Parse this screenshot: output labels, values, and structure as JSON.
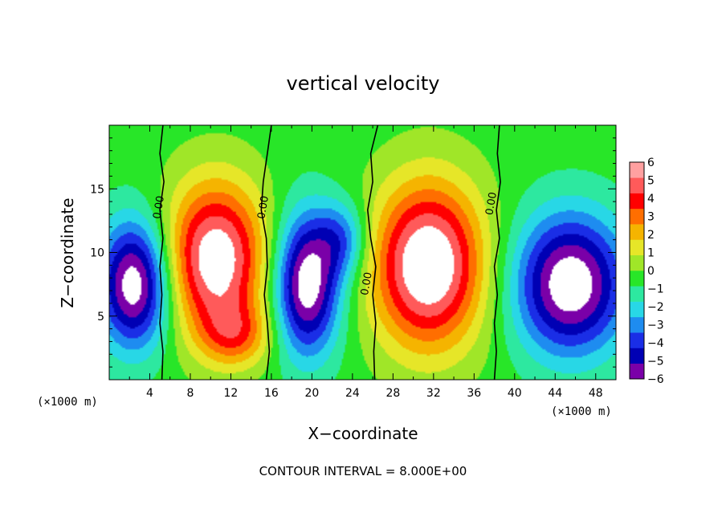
{
  "chart_data": {
    "type": "heatmap",
    "title": "vertical velocity",
    "xlabel": "X−coordinate",
    "ylabel": "Z−coordinate",
    "x_unit_label": "(×1000 m)",
    "y_unit_label": "(×1000 m)",
    "footer": "CONTOUR INTERVAL = 8.000E+00",
    "xlim": [
      0,
      50
    ],
    "ylim": [
      0,
      20
    ],
    "x_ticks": [
      "4",
      "8",
      "12",
      "16",
      "20",
      "24",
      "28",
      "32",
      "36",
      "40",
      "44",
      "48"
    ],
    "y_ticks": [
      "5",
      "10",
      "15"
    ],
    "colorbar": {
      "levels": [
        "6",
        "5",
        "4",
        "3",
        "2",
        "1",
        "0",
        "−1",
        "−2",
        "−3",
        "−4",
        "−5",
        "−6"
      ],
      "range": [
        -6,
        6
      ],
      "colors": [
        "#7a00a8",
        "#0000b4",
        "#1a2ee6",
        "#1e8cf0",
        "#28d7e6",
        "#2de8a0",
        "#28e628",
        "#a0e628",
        "#e6e628",
        "#f5b400",
        "#ff6e00",
        "#ff0000",
        "#ff5a5a",
        "#ffa0a0"
      ]
    },
    "contour_labels": [
      {
        "text": "0.00",
        "x": 5.2,
        "z": 13.5
      },
      {
        "text": "0.00",
        "x": 15.5,
        "z": 13.5
      },
      {
        "text": "0.00",
        "x": 25.7,
        "z": 7.5
      },
      {
        "text": "0.00",
        "x": 38.0,
        "z": 13.8
      }
    ],
    "zero_contours_x": [
      [
        5.3,
        5.0,
        5.4,
        5.0,
        5.3,
        5.0,
        5.2,
        5.0,
        5.3,
        5.2
      ],
      [
        16.0,
        15.6,
        15.2,
        15.0,
        15.5,
        15.6,
        15.3,
        15.6,
        15.8,
        15.5
      ],
      [
        26.5,
        25.8,
        26.0,
        25.5,
        25.8,
        26.3,
        26.0,
        26.3,
        26.1,
        26.2
      ],
      [
        38.5,
        38.3,
        38.6,
        38.2,
        38.5,
        38.0,
        38.3,
        38.0,
        38.2,
        38.0
      ]
    ],
    "cells": [
      {
        "x": 10.5,
        "z": 9.5,
        "rx": 5.0,
        "rz": 6.0,
        "a": 7.0
      },
      {
        "x": 31.5,
        "z": 9.0,
        "rx": 5.5,
        "rz": 6.5,
        "a": 7.5
      },
      {
        "x": 2.5,
        "z": 7.5,
        "rx": 3.5,
        "rz": 5.0,
        "a": -7.0
      },
      {
        "x": 19.5,
        "z": 7.5,
        "rx": 3.2,
        "rz": 5.5,
        "a": -7.0
      },
      {
        "x": 45.5,
        "z": 7.5,
        "rx": 5.5,
        "rz": 5.5,
        "a": -7.0
      },
      {
        "x": 12.5,
        "z": 3.5,
        "rx": 3.5,
        "rz": 2.5,
        "a": 3.0
      },
      {
        "x": 23.0,
        "z": 11.0,
        "rx": 2.5,
        "rz": 3.0,
        "a": -3.0
      }
    ]
  }
}
